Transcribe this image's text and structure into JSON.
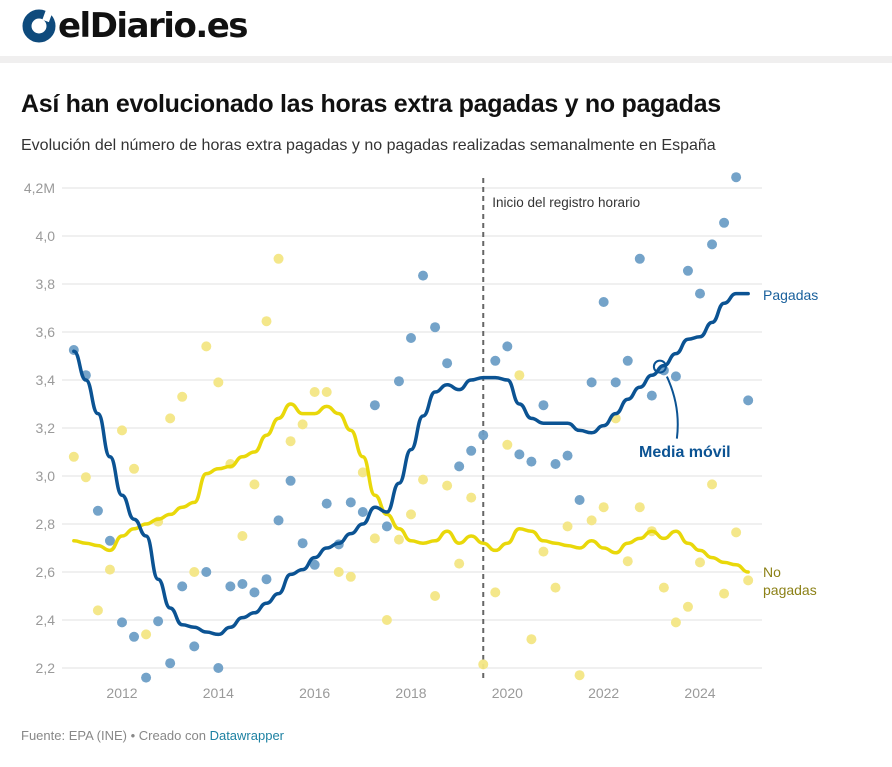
{
  "brand": {
    "name": "elDiario.es",
    "logo_color": "#0e4a7c"
  },
  "title": "Así han evolucionado las horas extra pagadas y no pagadas",
  "subtitle": "Evolución del número de horas extra pagadas y no pagadas realizadas semanalmente en España",
  "footer": {
    "source": "Fuente: EPA (INE) • Creado con",
    "link": "Datawrapper"
  },
  "chart_data": {
    "type": "scatter",
    "title": "Así han evolucionado las horas extra pagadas y no pagadas",
    "subtitle": "Evolución del número de horas extra pagadas y no pagadas realizadas semanalmente en España",
    "xlabel": "",
    "ylabel": "",
    "ylim": [
      2.2,
      4.2
    ],
    "xlim": [
      2010.75,
      2025.25
    ],
    "y_ticks": [
      "2,2",
      "2,4",
      "2,6",
      "2,8",
      "3,0",
      "3,2",
      "3,4",
      "3,6",
      "3,8",
      "4,0",
      "4,2M"
    ],
    "y_tick_values": [
      2.2,
      2.4,
      2.6,
      2.8,
      3.0,
      3.2,
      3.4,
      3.6,
      3.8,
      4.0,
      4.2
    ],
    "x_ticks": [
      "2012",
      "2014",
      "2016",
      "2018",
      "2020",
      "2022",
      "2024"
    ],
    "x_tick_values": [
      2012,
      2014,
      2016,
      2018,
      2020,
      2022,
      2024
    ],
    "grid": true,
    "x_start": 2011.0,
    "x_step": 0.25,
    "series": [
      {
        "name": "Pagadas",
        "color": "#0b5393",
        "dot_color": "#6d9ec6",
        "points": [
          3.525,
          3.42,
          2.855,
          2.73,
          2.39,
          2.33,
          2.16,
          2.395,
          2.22,
          2.54,
          2.29,
          2.6,
          2.2,
          2.54,
          2.55,
          2.515,
          2.57,
          2.815,
          2.98,
          2.72,
          2.63,
          2.885,
          2.715,
          2.89,
          2.85,
          3.295,
          2.79,
          3.395,
          3.575,
          3.835,
          3.62,
          3.47,
          3.04,
          3.105,
          3.17,
          3.48,
          3.54,
          3.09,
          3.06,
          3.295,
          3.05,
          3.085,
          2.9,
          3.39,
          3.725,
          3.39,
          3.48,
          3.905,
          3.335,
          3.44,
          3.415,
          3.855,
          3.76,
          3.965,
          4.055,
          4.245,
          3.315
        ],
        "moving_average": [
          3.52,
          3.4,
          3.26,
          3.08,
          2.92,
          2.82,
          2.75,
          2.57,
          2.45,
          2.38,
          2.37,
          2.35,
          2.34,
          2.37,
          2.41,
          2.43,
          2.47,
          2.51,
          2.59,
          2.61,
          2.66,
          2.7,
          2.72,
          2.76,
          2.8,
          2.87,
          2.85,
          2.97,
          3.11,
          3.25,
          3.35,
          3.38,
          3.36,
          3.4,
          3.41,
          3.41,
          3.4,
          3.3,
          3.24,
          3.22,
          3.22,
          3.22,
          3.19,
          3.18,
          3.21,
          3.26,
          3.32,
          3.37,
          3.42,
          3.46,
          3.51,
          3.57,
          3.58,
          3.64,
          3.72,
          3.76,
          3.76
        ],
        "label": "Pagadas",
        "label_color": "#19609c"
      },
      {
        "name": "No pagadas",
        "color": "#e9d80a",
        "dot_color": "#f3e684",
        "points": [
          3.08,
          2.995,
          2.44,
          2.61,
          3.19,
          3.03,
          2.34,
          2.81,
          3.24,
          3.33,
          2.6,
          3.54,
          3.39,
          3.05,
          2.75,
          2.965,
          3.645,
          3.905,
          3.145,
          3.215,
          3.35,
          3.35,
          2.6,
          2.58,
          3.015,
          2.74,
          2.4,
          2.735,
          2.84,
          2.985,
          2.5,
          2.96,
          2.635,
          2.91,
          2.215,
          2.515,
          3.13,
          3.42,
          2.32,
          2.685,
          2.535,
          2.79,
          2.17,
          2.815,
          2.87,
          3.24,
          2.645,
          2.87,
          2.77,
          2.535,
          2.39,
          2.455,
          2.64,
          2.965,
          2.51,
          2.765,
          2.565
        ],
        "moving_average": [
          2.73,
          2.72,
          2.71,
          2.69,
          2.75,
          2.78,
          2.8,
          2.82,
          2.84,
          2.87,
          2.89,
          3.01,
          3.03,
          3.04,
          3.08,
          3.1,
          3.17,
          3.24,
          3.3,
          3.26,
          3.26,
          3.29,
          3.26,
          3.19,
          3.08,
          2.92,
          2.84,
          2.78,
          2.73,
          2.72,
          2.73,
          2.77,
          2.72,
          2.75,
          2.72,
          2.69,
          2.72,
          2.78,
          2.77,
          2.73,
          2.72,
          2.71,
          2.7,
          2.73,
          2.7,
          2.68,
          2.72,
          2.74,
          2.77,
          2.74,
          2.77,
          2.72,
          2.69,
          2.66,
          2.64,
          2.63,
          2.6
        ],
        "label": "No pagadas",
        "label_lines": [
          "No",
          "pagadas"
        ],
        "label_color": "#8c8117"
      }
    ],
    "annotations": [
      {
        "type": "vline",
        "x": 2019.5,
        "text": "Inicio del registro horario"
      },
      {
        "type": "callout",
        "text": "Media móvil",
        "series": "Pagadas",
        "x_index": 49,
        "color": "#0b5393"
      }
    ],
    "legend": "inline-right"
  }
}
